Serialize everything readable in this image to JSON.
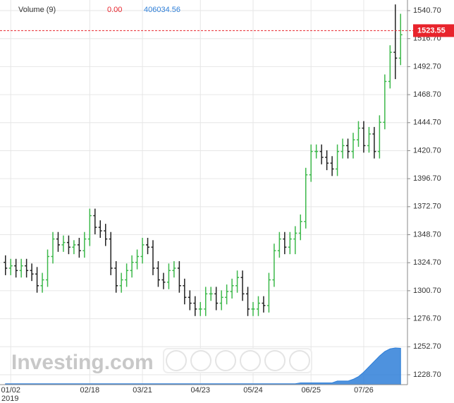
{
  "chart_data": {
    "type": "ohlc",
    "categories": [
      null,
      "01/02",
      null,
      null,
      null,
      null,
      null,
      null,
      null,
      null,
      null,
      null,
      null,
      null,
      null,
      null,
      "02/18",
      null,
      null,
      null,
      null,
      null,
      null,
      null,
      null,
      null,
      "03/21",
      null,
      null,
      null,
      null,
      null,
      null,
      null,
      null,
      null,
      null,
      "04/23",
      null,
      null,
      null,
      null,
      null,
      null,
      null,
      null,
      null,
      "05/24",
      null,
      null,
      null,
      null,
      null,
      null,
      null,
      null,
      null,
      null,
      "06/25",
      null,
      null,
      null,
      null,
      null,
      null,
      null,
      null,
      null,
      "07/26",
      null,
      null,
      null,
      null,
      null,
      null,
      null
    ],
    "year_label": "2019",
    "open": [
      1325,
      1320,
      1322,
      1318,
      1322,
      1318,
      1315,
      1305,
      1310,
      1330,
      1345,
      1340,
      1342,
      1338,
      1340,
      1335,
      1345,
      1365,
      1355,
      1352,
      1345,
      1320,
      1305,
      1310,
      1318,
      1325,
      1330,
      1340,
      1338,
      1320,
      1310,
      1308,
      1318,
      1320,
      1305,
      1295,
      1290,
      1285,
      1285,
      1298,
      1298,
      1290,
      1295,
      1300,
      1305,
      1312,
      1298,
      1285,
      1285,
      1290,
      1288,
      1310,
      1335,
      1345,
      1338,
      1345,
      1350,
      1360,
      1400,
      1420,
      1420,
      1415,
      1410,
      1405,
      1420,
      1425,
      1420,
      1430,
      1440,
      1425,
      1435,
      1420,
      1445,
      1480,
      1505,
      1500
    ],
    "high": [
      1331,
      1328,
      1328,
      1328,
      1328,
      1324,
      1321,
      1316,
      1336,
      1351,
      1351,
      1348,
      1348,
      1344,
      1346,
      1351,
      1371,
      1371,
      1361,
      1358,
      1351,
      1326,
      1316,
      1324,
      1331,
      1336,
      1346,
      1346,
      1344,
      1326,
      1316,
      1324,
      1326,
      1326,
      1311,
      1301,
      1296,
      1291,
      1304,
      1304,
      1304,
      1301,
      1306,
      1311,
      1318,
      1318,
      1304,
      1291,
      1296,
      1296,
      1316,
      1341,
      1351,
      1351,
      1351,
      1356,
      1366,
      1406,
      1426,
      1426,
      1426,
      1421,
      1416,
      1426,
      1431,
      1431,
      1436,
      1446,
      1446,
      1441,
      1441,
      1451,
      1486,
      1511,
      1546,
      1538
    ],
    "low": [
      1314,
      1314,
      1312,
      1312,
      1312,
      1309,
      1299,
      1299,
      1304,
      1324,
      1334,
      1334,
      1332,
      1332,
      1329,
      1329,
      1339,
      1349,
      1346,
      1339,
      1314,
      1299,
      1299,
      1304,
      1312,
      1319,
      1324,
      1332,
      1314,
      1304,
      1302,
      1302,
      1312,
      1299,
      1289,
      1284,
      1279,
      1279,
      1279,
      1292,
      1284,
      1284,
      1289,
      1294,
      1299,
      1292,
      1279,
      1279,
      1279,
      1282,
      1282,
      1304,
      1329,
      1332,
      1332,
      1332,
      1344,
      1354,
      1394,
      1414,
      1409,
      1404,
      1399,
      1399,
      1414,
      1414,
      1414,
      1424,
      1419,
      1419,
      1414,
      1414,
      1439,
      1474,
      1482,
      1494
    ],
    "close": [
      1320,
      1322,
      1318,
      1322,
      1318,
      1315,
      1305,
      1310,
      1330,
      1345,
      1340,
      1342,
      1338,
      1340,
      1335,
      1345,
      1365,
      1355,
      1352,
      1345,
      1320,
      1305,
      1310,
      1318,
      1325,
      1330,
      1340,
      1338,
      1320,
      1310,
      1308,
      1318,
      1320,
      1305,
      1295,
      1290,
      1285,
      1285,
      1298,
      1298,
      1290,
      1295,
      1300,
      1305,
      1312,
      1298,
      1285,
      1285,
      1290,
      1288,
      1310,
      1335,
      1345,
      1338,
      1345,
      1350,
      1360,
      1400,
      1420,
      1420,
      1415,
      1410,
      1405,
      1420,
      1425,
      1420,
      1430,
      1440,
      1425,
      1435,
      1420,
      1445,
      1480,
      1505,
      1500,
      1520
    ],
    "up_color": "#3cb84a",
    "down_color": "#222222",
    "volume": [
      10000,
      10000,
      10000,
      10000,
      10000,
      10000,
      10000,
      10000,
      10000,
      10000,
      10000,
      10000,
      10000,
      10000,
      10000,
      10000,
      10000,
      10000,
      10000,
      10000,
      10000,
      10000,
      10000,
      10000,
      10000,
      10000,
      10000,
      10000,
      10000,
      10000,
      10000,
      10000,
      10000,
      10000,
      10000,
      10000,
      10000,
      10000,
      10000,
      10000,
      10000,
      10000,
      10000,
      10000,
      10000,
      10000,
      10000,
      10000,
      10000,
      10000,
      10000,
      10000,
      10000,
      10000,
      10000,
      10000,
      20000,
      20000,
      20000,
      20000,
      20000,
      20000,
      20000,
      40000,
      40000,
      40000,
      60000,
      90000,
      140000,
      200000,
      260000,
      320000,
      370000,
      400000,
      410000,
      406034.56
    ],
    "volume_color": "#2f7fd8",
    "volume_legend": {
      "name": "Volume (9)",
      "change": "0.00",
      "value": "406034.56"
    },
    "last_price": 1523.55,
    "last_price_color": "#e8242c",
    "ylim": [
      1220.2,
      1549.8
    ],
    "yticks": [
      {
        "value": 1228.7,
        "label": "1228.70"
      },
      {
        "value": 1252.7,
        "label": "1252.70"
      },
      {
        "value": 1276.7,
        "label": "1276.70"
      },
      {
        "value": 1300.7,
        "label": "1300.70"
      },
      {
        "value": 1324.7,
        "label": "1324.70"
      },
      {
        "value": 1348.7,
        "label": "1348.70"
      },
      {
        "value": 1372.7,
        "label": "1372.70"
      },
      {
        "value": 1396.7,
        "label": "1396.70"
      },
      {
        "value": 1420.7,
        "label": "1420.70"
      },
      {
        "value": 1444.7,
        "label": "1444.70"
      },
      {
        "value": 1468.7,
        "label": "1468.70"
      },
      {
        "value": 1492.7,
        "label": "1492.70"
      },
      {
        "value": 1516.7,
        "label": "1516.70"
      },
      {
        "value": 1540.7,
        "label": "1540.70"
      }
    ],
    "grid": true,
    "watermark": "Investing.com"
  }
}
